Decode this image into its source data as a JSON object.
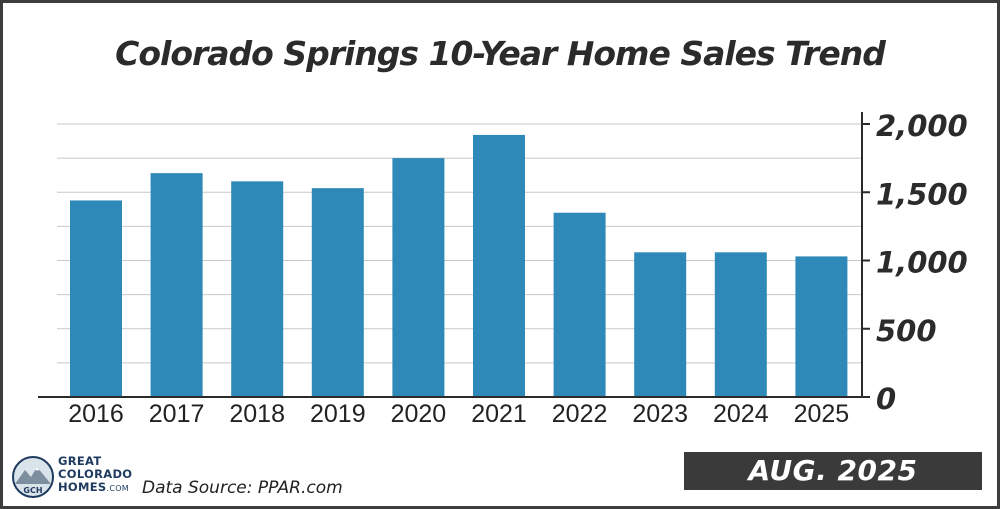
{
  "chart_data": {
    "type": "bar",
    "title": "Colorado Springs 10-Year Home Sales Trend",
    "categories": [
      "2016",
      "2017",
      "2018",
      "2019",
      "2020",
      "2021",
      "2022",
      "2023",
      "2024",
      "2025"
    ],
    "values": [
      1440,
      1640,
      1580,
      1530,
      1750,
      1920,
      1350,
      1060,
      1060,
      1030
    ],
    "ylim": [
      0,
      2000
    ],
    "yticks": [
      "0",
      "500",
      "1,000",
      "1,500",
      "2,000"
    ],
    "ytick_values": [
      0,
      500,
      1000,
      1500,
      2000
    ],
    "bar_color": "#2e88b8",
    "axis_position": "right",
    "grid": true
  },
  "badge": "AUG. 2025",
  "brand": {
    "line1": "GREAT",
    "line2": "COLORADO",
    "line3": "HOMES",
    "suffix": ".COM",
    "logo_text": "GCH"
  },
  "source": "Data Source: PPAR.com"
}
